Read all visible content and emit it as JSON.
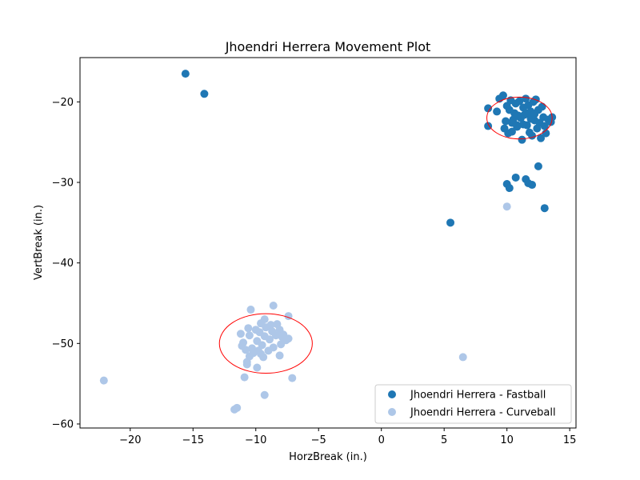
{
  "chart_data": {
    "type": "scatter",
    "title": "Jhoendri Herrera Movement Plot",
    "xlabel": "HorzBreak (in.)",
    "ylabel": "VertBreak (in.)",
    "xlim": [
      -24,
      15.5
    ],
    "ylim": [
      -60.5,
      -14.5
    ],
    "xticks": [
      -20,
      -15,
      -10,
      -5,
      0,
      5,
      10,
      15
    ],
    "yticks": [
      -60,
      -50,
      -40,
      -30,
      -20
    ],
    "grid": false,
    "legend_position": "lower-right",
    "series": [
      {
        "name": "Jhoendri Herrera - Fastball",
        "color": "#1f77b4",
        "points": [
          [
            -15.6,
            -16.5
          ],
          [
            -14.1,
            -19.0
          ],
          [
            5.5,
            -35.0
          ],
          [
            13.0,
            -33.2
          ],
          [
            10.0,
            -30.2
          ],
          [
            10.2,
            -30.7
          ],
          [
            10.7,
            -29.4
          ],
          [
            11.5,
            -29.6
          ],
          [
            11.7,
            -30.1
          ],
          [
            12.0,
            -30.3
          ],
          [
            12.5,
            -28.0
          ],
          [
            8.5,
            -20.8
          ],
          [
            8.5,
            -23.0
          ],
          [
            9.2,
            -21.2
          ],
          [
            9.4,
            -19.6
          ],
          [
            9.7,
            -19.2
          ],
          [
            9.8,
            -23.3
          ],
          [
            10.0,
            -20.5
          ],
          [
            10.1,
            -23.9
          ],
          [
            10.3,
            -19.8
          ],
          [
            10.4,
            -22.6
          ],
          [
            10.6,
            -21.4
          ],
          [
            10.7,
            -20.2
          ],
          [
            10.8,
            -23.1
          ],
          [
            11.0,
            -19.9
          ],
          [
            11.1,
            -22.0
          ],
          [
            11.2,
            -24.7
          ],
          [
            11.3,
            -20.7
          ],
          [
            11.4,
            -21.6
          ],
          [
            11.5,
            -19.6
          ],
          [
            11.6,
            -22.9
          ],
          [
            11.7,
            -20.4
          ],
          [
            11.8,
            -23.8
          ],
          [
            11.9,
            -21.2
          ],
          [
            12.0,
            -24.2
          ],
          [
            12.1,
            -20.0
          ],
          [
            12.2,
            -22.3
          ],
          [
            12.3,
            -19.7
          ],
          [
            12.4,
            -23.3
          ],
          [
            12.5,
            -21.0
          ],
          [
            12.6,
            -22.6
          ],
          [
            12.7,
            -24.5
          ],
          [
            12.8,
            -20.6
          ],
          [
            12.9,
            -21.9
          ],
          [
            13.0,
            -23.0
          ],
          [
            13.1,
            -23.9
          ],
          [
            13.3,
            -22.2
          ],
          [
            13.5,
            -22.5
          ],
          [
            13.6,
            -21.9
          ],
          [
            10.2,
            -21.0
          ],
          [
            10.5,
            -22.2
          ],
          [
            10.9,
            -21.7
          ],
          [
            11.3,
            -22.8
          ],
          [
            11.6,
            -21.4
          ],
          [
            10.8,
            -22.9
          ],
          [
            11.9,
            -22.1
          ],
          [
            12.2,
            -21.5
          ],
          [
            9.9,
            -22.4
          ],
          [
            10.4,
            -23.7
          ]
        ],
        "ellipse": {
          "center": [
            11.0,
            -22.0
          ],
          "width": 5.2,
          "height": 5.2,
          "color": "#ff0000"
        }
      },
      {
        "name": "Jhoendri Herrera - Curveball",
        "color": "#aec7e8",
        "points": [
          [
            -22.1,
            -54.6
          ],
          [
            -11.7,
            -58.2
          ],
          [
            -11.5,
            -58.0
          ],
          [
            -9.3,
            -56.4
          ],
          [
            -10.9,
            -54.2
          ],
          [
            -7.1,
            -54.3
          ],
          [
            -9.9,
            -53.0
          ],
          [
            -10.7,
            -52.6
          ],
          [
            -10.7,
            -52.3
          ],
          [
            -10.4,
            -45.8
          ],
          [
            -8.6,
            -45.3
          ],
          [
            -7.4,
            -46.6
          ],
          [
            -9.3,
            -47.0
          ],
          [
            -9.6,
            -47.5
          ],
          [
            -11.2,
            -48.8
          ],
          [
            -11.0,
            -49.9
          ],
          [
            -11.1,
            -50.3
          ],
          [
            -10.6,
            -48.1
          ],
          [
            -10.5,
            -49.0
          ],
          [
            -10.3,
            -50.6
          ],
          [
            -10.2,
            -51.2
          ],
          [
            -10.5,
            -51.6
          ],
          [
            -9.9,
            -49.7
          ],
          [
            -9.7,
            -48.6
          ],
          [
            -9.5,
            -50.2
          ],
          [
            -9.4,
            -51.7
          ],
          [
            -9.3,
            -49.1
          ],
          [
            -9.2,
            -48.0
          ],
          [
            -9.0,
            -50.9
          ],
          [
            -8.9,
            -49.5
          ],
          [
            -8.8,
            -47.7
          ],
          [
            -8.6,
            -50.5
          ],
          [
            -8.4,
            -49.0
          ],
          [
            -8.3,
            -47.6
          ],
          [
            -8.1,
            -48.3
          ],
          [
            -8.0,
            -50.1
          ],
          [
            -7.9,
            -49.2
          ],
          [
            -7.6,
            -49.6
          ],
          [
            -7.4,
            -49.4
          ],
          [
            -8.1,
            -51.5
          ],
          [
            -9.6,
            -51.3
          ],
          [
            -10.8,
            -50.8
          ],
          [
            -10.0,
            -48.3
          ],
          [
            -8.7,
            -48.5
          ],
          [
            -9.8,
            -50.9
          ],
          [
            -7.8,
            -48.9
          ],
          [
            6.5,
            -51.7
          ],
          [
            10.0,
            -33.0
          ]
        ],
        "ellipse": {
          "center": [
            -9.2,
            -50.0
          ],
          "width": 7.4,
          "height": 7.4,
          "color": "#ff0000"
        }
      }
    ]
  }
}
